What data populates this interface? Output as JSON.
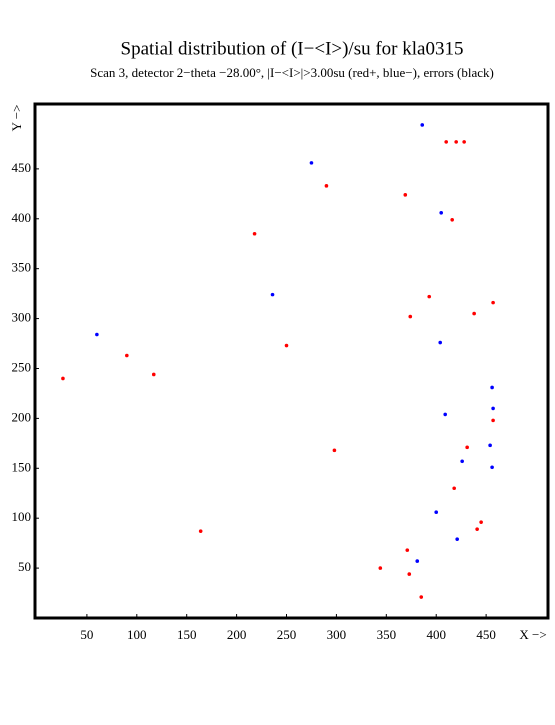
{
  "chart_data": {
    "type": "scatter",
    "title": "Spatial distribution of (I−<I>)/su for kla0315",
    "subtitle": "Scan  3, detector 2−theta −28.00°, |I−<I>|>3.00su (red+, blue−), errors (black)",
    "x_label": "X −>",
    "y_label": "Y −>",
    "xlim": [
      -2,
      512
    ],
    "ylim": [
      0,
      515
    ],
    "xticks": [
      50,
      100,
      150,
      200,
      250,
      300,
      350,
      400,
      450
    ],
    "yticks": [
      50,
      100,
      150,
      200,
      250,
      300,
      350,
      400,
      450
    ],
    "series": [
      {
        "color": "#0000ff",
        "x": [
          386,
          275,
          405,
          236,
          60,
          404,
          456,
          457,
          409,
          454,
          426,
          456,
          400,
          421,
          381
        ],
        "values": [
          494,
          456,
          406,
          324,
          284,
          276,
          231,
          210,
          204,
          173,
          157,
          151,
          106,
          79,
          57
        ]
      },
      {
        "color": "#ff0000",
        "x": [
          410,
          420,
          428,
          290,
          369,
          416,
          218,
          393,
          457,
          438,
          374,
          250,
          90,
          117,
          26,
          457,
          431,
          298,
          418,
          164,
          445,
          441,
          371,
          344,
          373,
          385
        ],
        "values": [
          477,
          477,
          477,
          433,
          424,
          399,
          385,
          322,
          316,
          305,
          302,
          273,
          263,
          244,
          240,
          198,
          171,
          168,
          130,
          87,
          96,
          89,
          68,
          50,
          44,
          21
        ]
      }
    ]
  }
}
